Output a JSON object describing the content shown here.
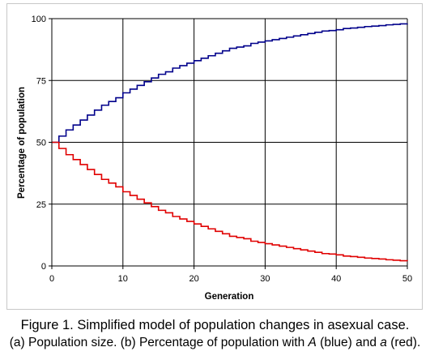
{
  "caption": {
    "line1": "Figure 1. Simplified model of population changes in asexual case.",
    "line2_pre": "(a) Population size. (b) Percentage of population with ",
    "line2_a_upper": "A",
    "line2_mid": " (blue) and ",
    "line2_a_lower": "a",
    "line2_post": " (red)."
  },
  "chart_data": {
    "type": "line",
    "step": true,
    "xlabel": "Generation",
    "ylabel": "Percentage of population",
    "xlim": [
      0,
      50
    ],
    "ylim": [
      0,
      100
    ],
    "xticks": [
      0,
      10,
      20,
      30,
      40,
      50
    ],
    "yticks": [
      0,
      25,
      50,
      75,
      100
    ],
    "grid": true,
    "legend": "none",
    "series": [
      {
        "color": "#00008b",
        "x": [
          0,
          1,
          2,
          3,
          4,
          5,
          6,
          7,
          8,
          9,
          10,
          11,
          12,
          13,
          14,
          15,
          16,
          17,
          18,
          19,
          20,
          21,
          22,
          23,
          24,
          25,
          26,
          27,
          28,
          29,
          30,
          31,
          32,
          33,
          34,
          35,
          36,
          37,
          38,
          39,
          40,
          41,
          42,
          43,
          44,
          45,
          46,
          47,
          48,
          49,
          50
        ],
        "y": [
          50,
          52.5,
          55,
          57,
          59,
          61,
          63,
          65,
          66.5,
          68,
          70,
          71.5,
          73,
          74.5,
          76,
          77.5,
          78.5,
          80,
          81,
          82,
          83,
          84,
          85,
          86,
          87,
          88,
          88.5,
          89,
          90,
          90.5,
          91,
          91.5,
          92,
          92.5,
          93,
          93.5,
          94,
          94.5,
          95,
          95.2,
          95.5,
          96,
          96.2,
          96.5,
          96.8,
          97,
          97.2,
          97.5,
          97.7,
          97.9,
          98
        ]
      },
      {
        "color": "#e00000",
        "x": [
          0,
          1,
          2,
          3,
          4,
          5,
          6,
          7,
          8,
          9,
          10,
          11,
          12,
          13,
          14,
          15,
          16,
          17,
          18,
          19,
          20,
          21,
          22,
          23,
          24,
          25,
          26,
          27,
          28,
          29,
          30,
          31,
          32,
          33,
          34,
          35,
          36,
          37,
          38,
          39,
          40,
          41,
          42,
          43,
          44,
          45,
          46,
          47,
          48,
          49,
          50
        ],
        "y": [
          50,
          47.5,
          45,
          43,
          41,
          39,
          37,
          35,
          33.5,
          32,
          30,
          28.5,
          27,
          25.5,
          24,
          22.5,
          21.5,
          20,
          19,
          18,
          17,
          16,
          15,
          14,
          13,
          12,
          11.5,
          11,
          10,
          9.5,
          9,
          8.5,
          8,
          7.5,
          7,
          6.5,
          6,
          5.5,
          5,
          4.8,
          4.5,
          4,
          3.8,
          3.5,
          3.2,
          3,
          2.8,
          2.5,
          2.3,
          2.1,
          2
        ]
      }
    ]
  }
}
